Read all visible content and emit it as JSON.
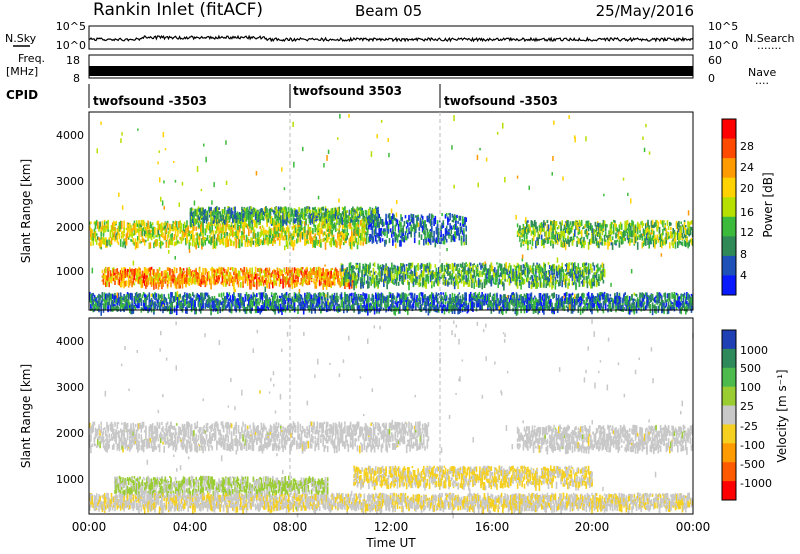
{
  "header": {
    "station": "Rankin Inlet (fitACF)",
    "beam": "Beam 05",
    "date": "25/May/2016"
  },
  "top_panels": {
    "nsky_label": "N.Sky",
    "nsearch_label": "N.Search",
    "nsearch_dots": "·······",
    "nsky_ticks": [
      "10^5",
      "10^0"
    ],
    "nsearch_ticks": [
      "10^5",
      "10^0"
    ],
    "freq_label": "Freq.",
    "freq_unit": "[MHz]",
    "freq_ticks": [
      "18",
      "8"
    ],
    "nave_label": "Nave",
    "nave_dots": "····",
    "nave_ticks": [
      "60",
      "0"
    ],
    "cpid_label": "CPID",
    "cpid_segments": [
      {
        "label": "twofsound -3503",
        "start_hour": 0
      },
      {
        "label": "twofsound 3503",
        "start_hour": 8
      },
      {
        "label": "twofsound -3503",
        "start_hour": 14
      }
    ]
  },
  "power_panel": {
    "ylabel": "Slant Range [km]",
    "cbar_label": "Power [dB]",
    "cbar_ticks": [
      "28",
      "24",
      "20",
      "16",
      "12",
      "8",
      "4"
    ],
    "cbar_colors": [
      "#ff0000",
      "#ff4a00",
      "#ff9a00",
      "#ffd200",
      "#b6e000",
      "#3cba3c",
      "#2f8a58",
      "#1f52b8",
      "#0a1aff"
    ]
  },
  "velocity_panel": {
    "ylabel": "Slant Range [km]",
    "cbar_label": "Velocity [m s⁻¹]",
    "cbar_ticks": [
      "1000",
      "500",
      "100",
      "25",
      "-25",
      "-100",
      "-500",
      "-1000"
    ],
    "cbar_colors": [
      "#1f3fb4",
      "#2e8a5a",
      "#4cba4c",
      "#9acd32",
      "#c8c8c8",
      "#f5d020",
      "#ff9a00",
      "#ff5a00",
      "#ff0000"
    ]
  },
  "x_axis": {
    "label": "Time UT",
    "ticks": [
      "00:00",
      "04:00",
      "08:00",
      "12:00",
      "16:00",
      "20:00",
      "00:00"
    ]
  },
  "y_ticks": [
    "4000",
    "3000",
    "2000",
    "1000"
  ],
  "chart_data": {
    "type": "heatmap",
    "title": "Rankin Inlet (fitACF)   Beam 05   25/May/2016",
    "xlabel": "Time UT",
    "ylabel": "Slant Range [km]",
    "x_range_hours": [
      0,
      24
    ],
    "y_range_km": [
      180,
      4500
    ],
    "panels": [
      {
        "name": "Power [dB]",
        "color_range": [
          0,
          30
        ],
        "bands": [
          {
            "t_start": 0.0,
            "t_end": 11.0,
            "range_km": 1900,
            "width_km": 500,
            "value": 16
          },
          {
            "t_start": 4.0,
            "t_end": 11.5,
            "range_km": 2300,
            "width_km": 300,
            "value": 10
          },
          {
            "t_start": 11.0,
            "t_end": 15.0,
            "range_km": 2000,
            "width_km": 600,
            "value": 6
          },
          {
            "t_start": 17.0,
            "t_end": 24.0,
            "range_km": 1900,
            "width_km": 500,
            "value": 12
          },
          {
            "t_start": 0.5,
            "t_end": 10.5,
            "range_km": 950,
            "width_km": 350,
            "value": 22
          },
          {
            "t_start": 10.0,
            "t_end": 20.5,
            "range_km": 1000,
            "width_km": 450,
            "value": 10
          },
          {
            "t_start": 0.0,
            "t_end": 24.0,
            "range_km": 400,
            "width_km": 350,
            "value": 6
          }
        ]
      },
      {
        "name": "Velocity [m s-1]",
        "color_range": [
          -1000,
          1000
        ],
        "bands": [
          {
            "t_start": 0.0,
            "t_end": 13.5,
            "range_km": 1950,
            "width_km": 550,
            "value": 0
          },
          {
            "t_start": 17.0,
            "t_end": 24.0,
            "range_km": 1900,
            "width_km": 500,
            "value": 0
          },
          {
            "t_start": 1.0,
            "t_end": 9.5,
            "range_km": 850,
            "width_km": 350,
            "value": 150
          },
          {
            "t_start": 10.5,
            "t_end": 20.0,
            "range_km": 1050,
            "width_km": 400,
            "value": -150
          },
          {
            "t_start": 0.0,
            "t_end": 24.0,
            "range_km": 500,
            "width_km": 300,
            "value": -80
          }
        ]
      }
    ],
    "vertical_markers_hours": [
      8,
      14
    ]
  }
}
